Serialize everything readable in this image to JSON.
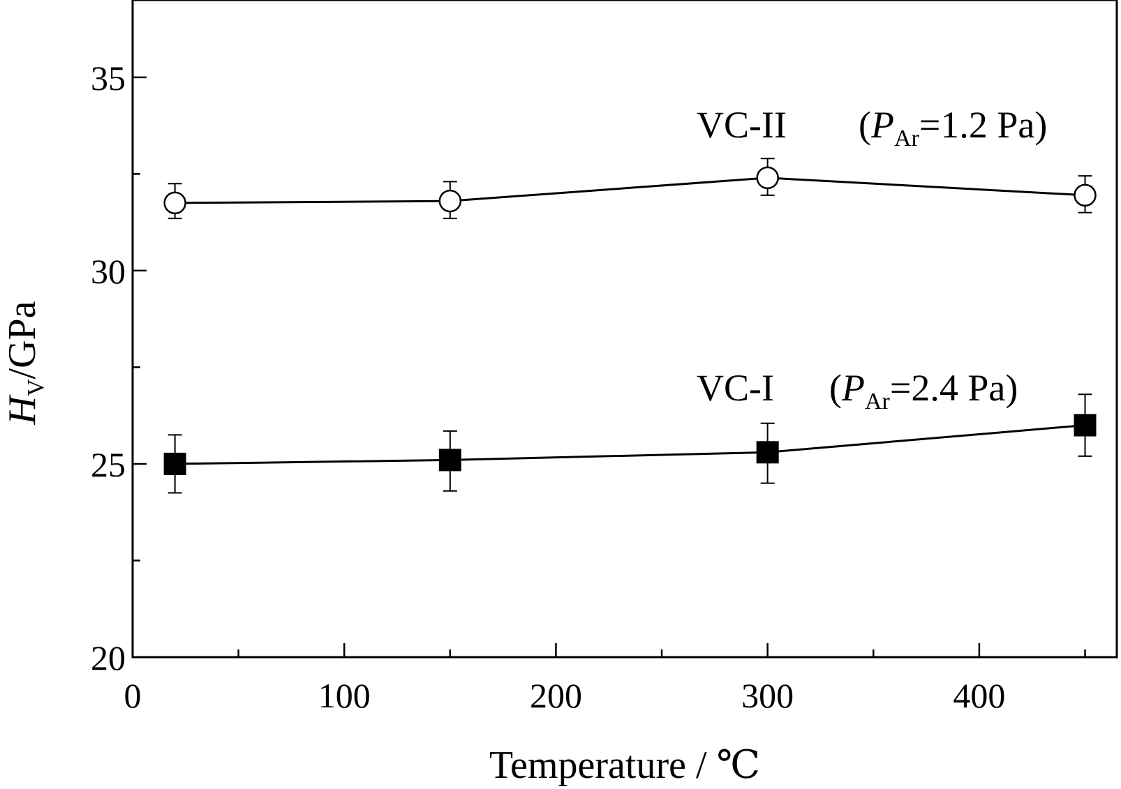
{
  "chart_data": {
    "type": "line",
    "title": "",
    "xlabel": "Temperature / ℃",
    "ylabel": {
      "main": "H",
      "sub": "V",
      "rest": "/GPa"
    },
    "xlim": [
      0,
      465
    ],
    "ylim": [
      20,
      37
    ],
    "xticks": [
      0,
      100,
      200,
      300,
      400
    ],
    "xtick_labels": [
      "0",
      "100",
      "200",
      "300",
      "400"
    ],
    "xminor": [
      50,
      150,
      250,
      350,
      450
    ],
    "yticks": [
      20,
      25,
      30,
      35
    ],
    "ytick_labels": [
      "20",
      "25",
      "30",
      "35"
    ],
    "yminor": [
      22.5,
      27.5,
      32.5
    ],
    "grid": false,
    "series": [
      {
        "name": "VC-II",
        "condition_prefix": "(",
        "condition_var": "P",
        "condition_sub": "Ar",
        "condition_value": "=1.2 Pa)",
        "marker": "open-circle",
        "x": [
          20,
          150,
          300,
          450
        ],
        "y": [
          31.75,
          31.8,
          32.4,
          31.95
        ],
        "err_low": [
          31.35,
          31.35,
          31.95,
          31.5
        ],
        "err_high": [
          32.25,
          32.3,
          32.9,
          32.45
        ]
      },
      {
        "name": "VC-I",
        "condition_prefix": "(",
        "condition_var": "P",
        "condition_sub": "Ar",
        "condition_value": "=2.4 Pa)",
        "marker": "filled-square",
        "x": [
          20,
          150,
          300,
          450
        ],
        "y": [
          25.0,
          25.1,
          25.3,
          26.0
        ],
        "err_low": [
          24.25,
          24.3,
          24.5,
          25.2
        ],
        "err_high": [
          25.75,
          25.85,
          26.05,
          26.8
        ]
      }
    ]
  }
}
